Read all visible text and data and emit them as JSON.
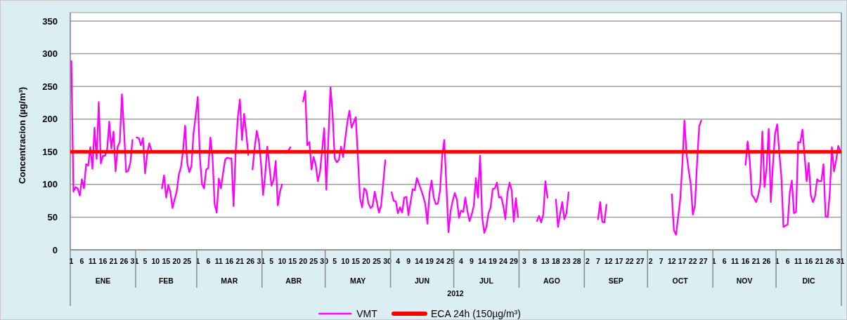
{
  "chart_data": {
    "type": "line",
    "ylabel": "Concentracion (µg/m³)",
    "xlabel": "2012",
    "xlim": [
      "2011-12-31T12:00",
      "2012-12-31T12:00"
    ],
    "ylim": [
      0,
      350
    ],
    "yticks": [
      0,
      50,
      100,
      150,
      200,
      250,
      300,
      350
    ],
    "grid": "y",
    "legend": "bottom",
    "x": [
      "2012-01-01",
      "2012-01-02",
      "2012-01-03",
      "2012-01-04",
      "2012-01-05",
      "2012-01-06",
      "2012-01-07",
      "2012-01-08",
      "2012-01-09",
      "2012-01-10",
      "2012-01-11",
      "2012-01-12",
      "2012-01-13",
      "2012-01-14",
      "2012-01-15",
      "2012-01-16",
      "2012-01-17",
      "2012-01-18",
      "2012-01-19",
      "2012-01-20",
      "2012-01-21",
      "2012-01-22",
      "2012-01-23",
      "2012-01-24",
      "2012-01-25",
      "2012-01-26",
      "2012-01-27",
      "2012-01-28",
      "2012-01-29",
      "2012-01-30",
      "2012-01-31",
      "2012-02-01",
      "2012-02-02",
      "2012-02-03",
      "2012-02-04",
      "2012-02-05",
      "2012-02-06",
      "2012-02-07",
      "2012-02-08",
      "2012-02-09",
      "2012-02-10",
      "2012-02-11",
      "2012-02-12",
      "2012-02-13",
      "2012-02-14",
      "2012-02-15",
      "2012-02-16",
      "2012-02-17",
      "2012-02-18",
      "2012-02-19",
      "2012-02-20",
      "2012-02-21",
      "2012-02-22",
      "2012-02-23",
      "2012-02-24",
      "2012-02-25",
      "2012-02-26",
      "2012-02-27",
      "2012-02-28",
      "2012-02-29",
      "2012-03-01",
      "2012-03-02",
      "2012-03-03",
      "2012-03-04",
      "2012-03-05",
      "2012-03-06",
      "2012-03-07",
      "2012-03-08",
      "2012-03-09",
      "2012-03-10",
      "2012-03-11",
      "2012-03-12",
      "2012-03-13",
      "2012-03-14",
      "2012-03-15",
      "2012-03-16",
      "2012-03-17",
      "2012-03-18",
      "2012-03-19",
      "2012-03-20",
      "2012-03-21",
      "2012-03-22",
      "2012-03-23",
      "2012-03-24",
      "2012-03-25",
      "2012-03-26",
      "2012-03-27",
      "2012-03-28",
      "2012-03-29",
      "2012-03-30",
      "2012-03-31",
      "2012-04-01",
      "2012-04-02",
      "2012-04-03",
      "2012-04-04",
      "2012-04-05",
      "2012-04-06",
      "2012-04-07",
      "2012-04-08",
      "2012-04-09",
      "2012-04-10",
      "2012-04-11",
      "2012-04-12",
      "2012-04-13",
      "2012-04-14",
      "2012-04-15",
      "2012-04-16",
      "2012-04-17",
      "2012-04-18",
      "2012-04-19",
      "2012-04-20",
      "2012-04-21",
      "2012-04-22",
      "2012-04-23",
      "2012-04-24",
      "2012-04-25",
      "2012-04-26",
      "2012-04-27",
      "2012-04-28",
      "2012-04-29",
      "2012-04-30",
      "2012-05-01",
      "2012-05-02",
      "2012-05-03",
      "2012-05-04",
      "2012-05-05",
      "2012-05-06",
      "2012-05-07",
      "2012-05-08",
      "2012-05-09",
      "2012-05-10",
      "2012-05-11",
      "2012-05-12",
      "2012-05-13",
      "2012-05-14",
      "2012-05-15",
      "2012-05-16",
      "2012-05-17",
      "2012-05-18",
      "2012-05-19",
      "2012-05-20",
      "2012-05-21",
      "2012-05-22",
      "2012-05-23",
      "2012-05-24",
      "2012-05-25",
      "2012-05-26",
      "2012-05-27",
      "2012-05-28",
      "2012-05-29",
      "2012-05-30",
      "2012-05-31",
      "2012-06-01",
      "2012-06-02",
      "2012-06-03",
      "2012-06-04",
      "2012-06-05",
      "2012-06-06",
      "2012-06-07",
      "2012-06-08",
      "2012-06-09",
      "2012-06-10",
      "2012-06-11",
      "2012-06-12",
      "2012-06-13",
      "2012-06-14",
      "2012-06-15",
      "2012-06-16",
      "2012-06-17",
      "2012-06-18",
      "2012-06-19",
      "2012-06-20",
      "2012-06-21",
      "2012-06-22",
      "2012-06-23",
      "2012-06-24",
      "2012-06-25",
      "2012-06-26",
      "2012-06-27",
      "2012-06-28",
      "2012-06-29",
      "2012-06-30",
      "2012-07-01",
      "2012-07-02",
      "2012-07-03",
      "2012-07-04",
      "2012-07-05",
      "2012-07-06",
      "2012-07-07",
      "2012-07-08",
      "2012-07-09",
      "2012-07-10",
      "2012-07-11",
      "2012-07-12",
      "2012-07-13",
      "2012-07-14",
      "2012-07-15",
      "2012-07-16",
      "2012-07-17",
      "2012-07-18",
      "2012-07-19",
      "2012-07-20",
      "2012-07-21",
      "2012-07-22",
      "2012-07-23",
      "2012-07-24",
      "2012-07-25",
      "2012-07-26",
      "2012-07-27",
      "2012-07-28",
      "2012-07-29",
      "2012-07-30",
      "2012-07-31",
      "2012-08-01",
      "2012-08-02",
      "2012-08-03",
      "2012-08-04",
      "2012-08-05",
      "2012-08-06",
      "2012-08-07",
      "2012-08-08",
      "2012-08-09",
      "2012-08-10",
      "2012-08-11",
      "2012-08-12",
      "2012-08-13",
      "2012-08-14",
      "2012-08-15",
      "2012-08-16",
      "2012-08-17",
      "2012-08-18",
      "2012-08-19",
      "2012-08-20",
      "2012-08-21",
      "2012-08-22",
      "2012-08-23",
      "2012-08-24",
      "2012-08-25",
      "2012-08-26",
      "2012-08-27",
      "2012-08-28",
      "2012-08-29",
      "2012-08-30",
      "2012-08-31",
      "2012-09-01",
      "2012-09-02",
      "2012-09-03",
      "2012-09-04",
      "2012-09-05",
      "2012-09-06",
      "2012-09-07",
      "2012-09-08",
      "2012-09-09",
      "2012-09-10",
      "2012-09-11",
      "2012-09-12",
      "2012-09-13",
      "2012-09-14",
      "2012-09-15",
      "2012-09-16",
      "2012-09-17",
      "2012-09-18",
      "2012-09-19",
      "2012-09-20",
      "2012-09-21",
      "2012-09-22",
      "2012-09-23",
      "2012-09-24",
      "2012-09-25",
      "2012-09-26",
      "2012-09-27",
      "2012-09-28",
      "2012-09-29",
      "2012-09-30",
      "2012-10-01",
      "2012-10-02",
      "2012-10-03",
      "2012-10-04",
      "2012-10-05",
      "2012-10-06",
      "2012-10-07",
      "2012-10-08",
      "2012-10-09",
      "2012-10-10",
      "2012-10-11",
      "2012-10-12",
      "2012-10-13",
      "2012-10-14",
      "2012-10-15",
      "2012-10-16",
      "2012-10-17",
      "2012-10-18",
      "2012-10-19",
      "2012-10-20",
      "2012-10-21",
      "2012-10-22",
      "2012-10-23",
      "2012-10-24",
      "2012-10-25",
      "2012-10-26",
      "2012-10-27",
      "2012-10-28",
      "2012-10-29",
      "2012-10-30",
      "2012-10-31",
      "2012-11-01",
      "2012-11-02",
      "2012-11-03",
      "2012-11-04",
      "2012-11-05",
      "2012-11-06",
      "2012-11-07",
      "2012-11-08",
      "2012-11-09",
      "2012-11-10",
      "2012-11-11",
      "2012-11-12",
      "2012-11-13",
      "2012-11-14",
      "2012-11-15",
      "2012-11-16",
      "2012-11-17",
      "2012-11-18",
      "2012-11-19",
      "2012-11-20",
      "2012-11-21",
      "2012-11-22",
      "2012-11-23",
      "2012-11-24",
      "2012-11-25",
      "2012-11-26",
      "2012-11-27",
      "2012-11-28",
      "2012-11-29",
      "2012-11-30",
      "2012-12-01",
      "2012-12-02",
      "2012-12-03",
      "2012-12-04",
      "2012-12-05",
      "2012-12-06",
      "2012-12-07",
      "2012-12-08",
      "2012-12-09",
      "2012-12-10",
      "2012-12-11",
      "2012-12-12",
      "2012-12-13",
      "2012-12-14",
      "2012-12-15",
      "2012-12-16",
      "2012-12-17",
      "2012-12-18",
      "2012-12-19",
      "2012-12-20",
      "2012-12-21",
      "2012-12-22",
      "2012-12-23",
      "2012-12-24",
      "2012-12-25",
      "2012-12-26",
      "2012-12-27",
      "2012-12-28",
      "2012-12-29",
      "2012-12-30",
      "2012-12-31"
    ],
    "xticks": [
      {
        "value": "2012-01-01",
        "label": "1"
      },
      {
        "value": "2012-01-06",
        "label": "6"
      },
      {
        "value": "2012-01-11",
        "label": "11"
      },
      {
        "value": "2012-01-16",
        "label": "16"
      },
      {
        "value": "2012-01-21",
        "label": "21"
      },
      {
        "value": "2012-01-26",
        "label": "26"
      },
      {
        "value": "2012-01-31",
        "label": "31"
      },
      {
        "value": "2012-02-05",
        "label": "5"
      },
      {
        "value": "2012-02-10",
        "label": "10"
      },
      {
        "value": "2012-02-15",
        "label": "15"
      },
      {
        "value": "2012-02-20",
        "label": "20"
      },
      {
        "value": "2012-02-25",
        "label": "25"
      },
      {
        "value": "2012-03-01",
        "label": "1"
      },
      {
        "value": "2012-03-06",
        "label": "6"
      },
      {
        "value": "2012-03-11",
        "label": "11"
      },
      {
        "value": "2012-03-16",
        "label": "16"
      },
      {
        "value": "2012-03-21",
        "label": "21"
      },
      {
        "value": "2012-03-26",
        "label": "26"
      },
      {
        "value": "2012-03-31",
        "label": "31"
      },
      {
        "value": "2012-04-05",
        "label": "5"
      },
      {
        "value": "2012-04-10",
        "label": "10"
      },
      {
        "value": "2012-04-15",
        "label": "15"
      },
      {
        "value": "2012-04-20",
        "label": "20"
      },
      {
        "value": "2012-04-25",
        "label": "25"
      },
      {
        "value": "2012-04-30",
        "label": "30"
      },
      {
        "value": "2012-05-05",
        "label": "5"
      },
      {
        "value": "2012-05-10",
        "label": "10"
      },
      {
        "value": "2012-05-15",
        "label": "15"
      },
      {
        "value": "2012-05-20",
        "label": "20"
      },
      {
        "value": "2012-05-25",
        "label": "25"
      },
      {
        "value": "2012-05-30",
        "label": "30"
      },
      {
        "value": "2012-06-04",
        "label": "4"
      },
      {
        "value": "2012-06-09",
        "label": "9"
      },
      {
        "value": "2012-06-14",
        "label": "14"
      },
      {
        "value": "2012-06-19",
        "label": "19"
      },
      {
        "value": "2012-06-24",
        "label": "24"
      },
      {
        "value": "2012-06-29",
        "label": "29"
      },
      {
        "value": "2012-07-04",
        "label": "4"
      },
      {
        "value": "2012-07-09",
        "label": "9"
      },
      {
        "value": "2012-07-14",
        "label": "14"
      },
      {
        "value": "2012-07-19",
        "label": "19"
      },
      {
        "value": "2012-07-24",
        "label": "24"
      },
      {
        "value": "2012-07-29",
        "label": "29"
      },
      {
        "value": "2012-08-03",
        "label": "3"
      },
      {
        "value": "2012-08-08",
        "label": "8"
      },
      {
        "value": "2012-08-13",
        "label": "13"
      },
      {
        "value": "2012-08-18",
        "label": "18"
      },
      {
        "value": "2012-08-23",
        "label": "23"
      },
      {
        "value": "2012-08-28",
        "label": "28"
      },
      {
        "value": "2012-09-02",
        "label": "2"
      },
      {
        "value": "2012-09-07",
        "label": "7"
      },
      {
        "value": "2012-09-12",
        "label": "12"
      },
      {
        "value": "2012-09-17",
        "label": "17"
      },
      {
        "value": "2012-09-22",
        "label": "22"
      },
      {
        "value": "2012-09-27",
        "label": "27"
      },
      {
        "value": "2012-10-02",
        "label": "2"
      },
      {
        "value": "2012-10-07",
        "label": "7"
      },
      {
        "value": "2012-10-12",
        "label": "12"
      },
      {
        "value": "2012-10-17",
        "label": "17"
      },
      {
        "value": "2012-10-22",
        "label": "22"
      },
      {
        "value": "2012-10-27",
        "label": "27"
      },
      {
        "value": "2012-11-01",
        "label": "1"
      },
      {
        "value": "2012-11-06",
        "label": "6"
      },
      {
        "value": "2012-11-11",
        "label": "11"
      },
      {
        "value": "2012-11-16",
        "label": "16"
      },
      {
        "value": "2012-11-21",
        "label": "21"
      },
      {
        "value": "2012-11-26",
        "label": "26"
      },
      {
        "value": "2012-12-01",
        "label": "1"
      },
      {
        "value": "2012-12-06",
        "label": "6"
      },
      {
        "value": "2012-12-11",
        "label": "11"
      },
      {
        "value": "2012-12-16",
        "label": "16"
      },
      {
        "value": "2012-12-21",
        "label": "21"
      },
      {
        "value": "2012-12-26",
        "label": "26"
      },
      {
        "value": "2012-12-31",
        "label": "31"
      }
    ],
    "annotations": [
      "ENE",
      "FEB",
      "MAR",
      "ABR",
      "MAY",
      "JUN",
      "JUL",
      "AGO",
      "SEP",
      "OCT",
      "NOV",
      "DIC"
    ],
    "series": [
      {
        "name": "VMT",
        "color": "#ff00ff",
        "values": [
          289,
          89,
          96,
          94,
          83,
          108,
          94,
          131,
          129,
          157,
          124,
          187,
          139,
          226,
          132,
          144,
          144,
          154,
          196,
          155,
          181,
          120,
          158,
          165,
          238,
          182,
          119,
          121,
          133,
          168,
          null,
          172,
          171,
          160,
          171,
          117,
          147,
          163,
          152,
          null,
          null,
          null,
          null,
          94,
          114,
          80,
          99,
          89,
          64,
          77,
          89,
          115,
          126,
          151,
          190,
          133,
          119,
          128,
          179,
          205,
          234,
          142,
          101,
          94,
          123,
          125,
          172,
          142,
          70,
          57,
          109,
          94,
          117,
          138,
          141,
          140,
          140,
          67,
          151,
          202,
          230,
          168,
          208,
          179,
          145,
          null,
          123,
          156,
          182,
          167,
          133,
          84,
          115,
          158,
          128,
          98,
          107,
          136,
          68,
          89,
          100,
          null,
          null,
          152,
          157,
          null,
          null,
          null,
          null,
          null,
          227,
          243,
          160,
          165,
          123,
          142,
          130,
          105,
          119,
          151,
          186,
          92,
          170,
          249,
          207,
          140,
          134,
          138,
          158,
          142,
          170,
          195,
          213,
          187,
          195,
          203,
          142,
          79,
          65,
          94,
          91,
          71,
          64,
          67,
          89,
          73,
          57,
          67,
          101,
          137,
          null,
          null,
          88,
          75,
          74,
          56,
          65,
          57,
          80,
          81,
          53,
          73,
          93,
          91,
          110,
          101,
          92,
          82,
          70,
          40,
          87,
          106,
          80,
          70,
          71,
          91,
          144,
          168,
          100,
          27,
          59,
          75,
          87,
          77,
          49,
          60,
          58,
          80,
          59,
          44,
          54,
          67,
          110,
          80,
          144,
          50,
          26,
          35,
          56,
          65,
          93,
          94,
          103,
          80,
          81,
          68,
          47,
          87,
          103,
          91,
          43,
          79,
          50,
          null,
          null,
          null,
          null,
          null,
          null,
          null,
          null,
          44,
          52,
          42,
          54,
          105,
          80,
          null,
          null,
          null,
          77,
          35,
          55,
          73,
          47,
          56,
          88,
          null,
          null,
          null,
          null,
          null,
          null,
          null,
          null,
          null,
          null,
          null,
          null,
          null,
          47,
          73,
          43,
          42,
          69,
          null,
          null,
          null,
          null,
          null,
          null,
          null,
          null,
          null,
          null,
          null,
          null,
          null,
          null,
          null,
          null,
          null,
          null,
          null,
          null,
          null,
          null,
          null,
          null,
          null,
          null,
          null,
          null,
          null,
          null,
          85,
          30,
          23,
          50,
          77,
          130,
          198,
          147,
          122,
          100,
          54,
          68,
          133,
          189,
          198,
          null,
          null,
          null,
          null,
          null,
          null,
          null,
          null,
          null,
          null,
          null,
          null,
          null,
          null,
          null,
          null,
          null,
          null,
          null,
          null,
          130,
          166,
          137,
          84,
          80,
          73,
          83,
          100,
          181,
          96,
          126,
          185,
          73,
          130,
          177,
          192,
          150,
          112,
          35,
          37,
          39,
          88,
          106,
          56,
          58,
          165,
          164,
          184,
          145,
          105,
          133,
          83,
          73,
          82,
          108,
          105,
          105,
          131,
          51,
          50,
          87,
          157,
          120,
          137,
          159,
          152
        ]
      }
    ],
    "ref_lines": [
      {
        "axis": "y",
        "value": 150,
        "label": "ECA 24h (150µg/m³)",
        "color": "#ff0000"
      }
    ]
  }
}
